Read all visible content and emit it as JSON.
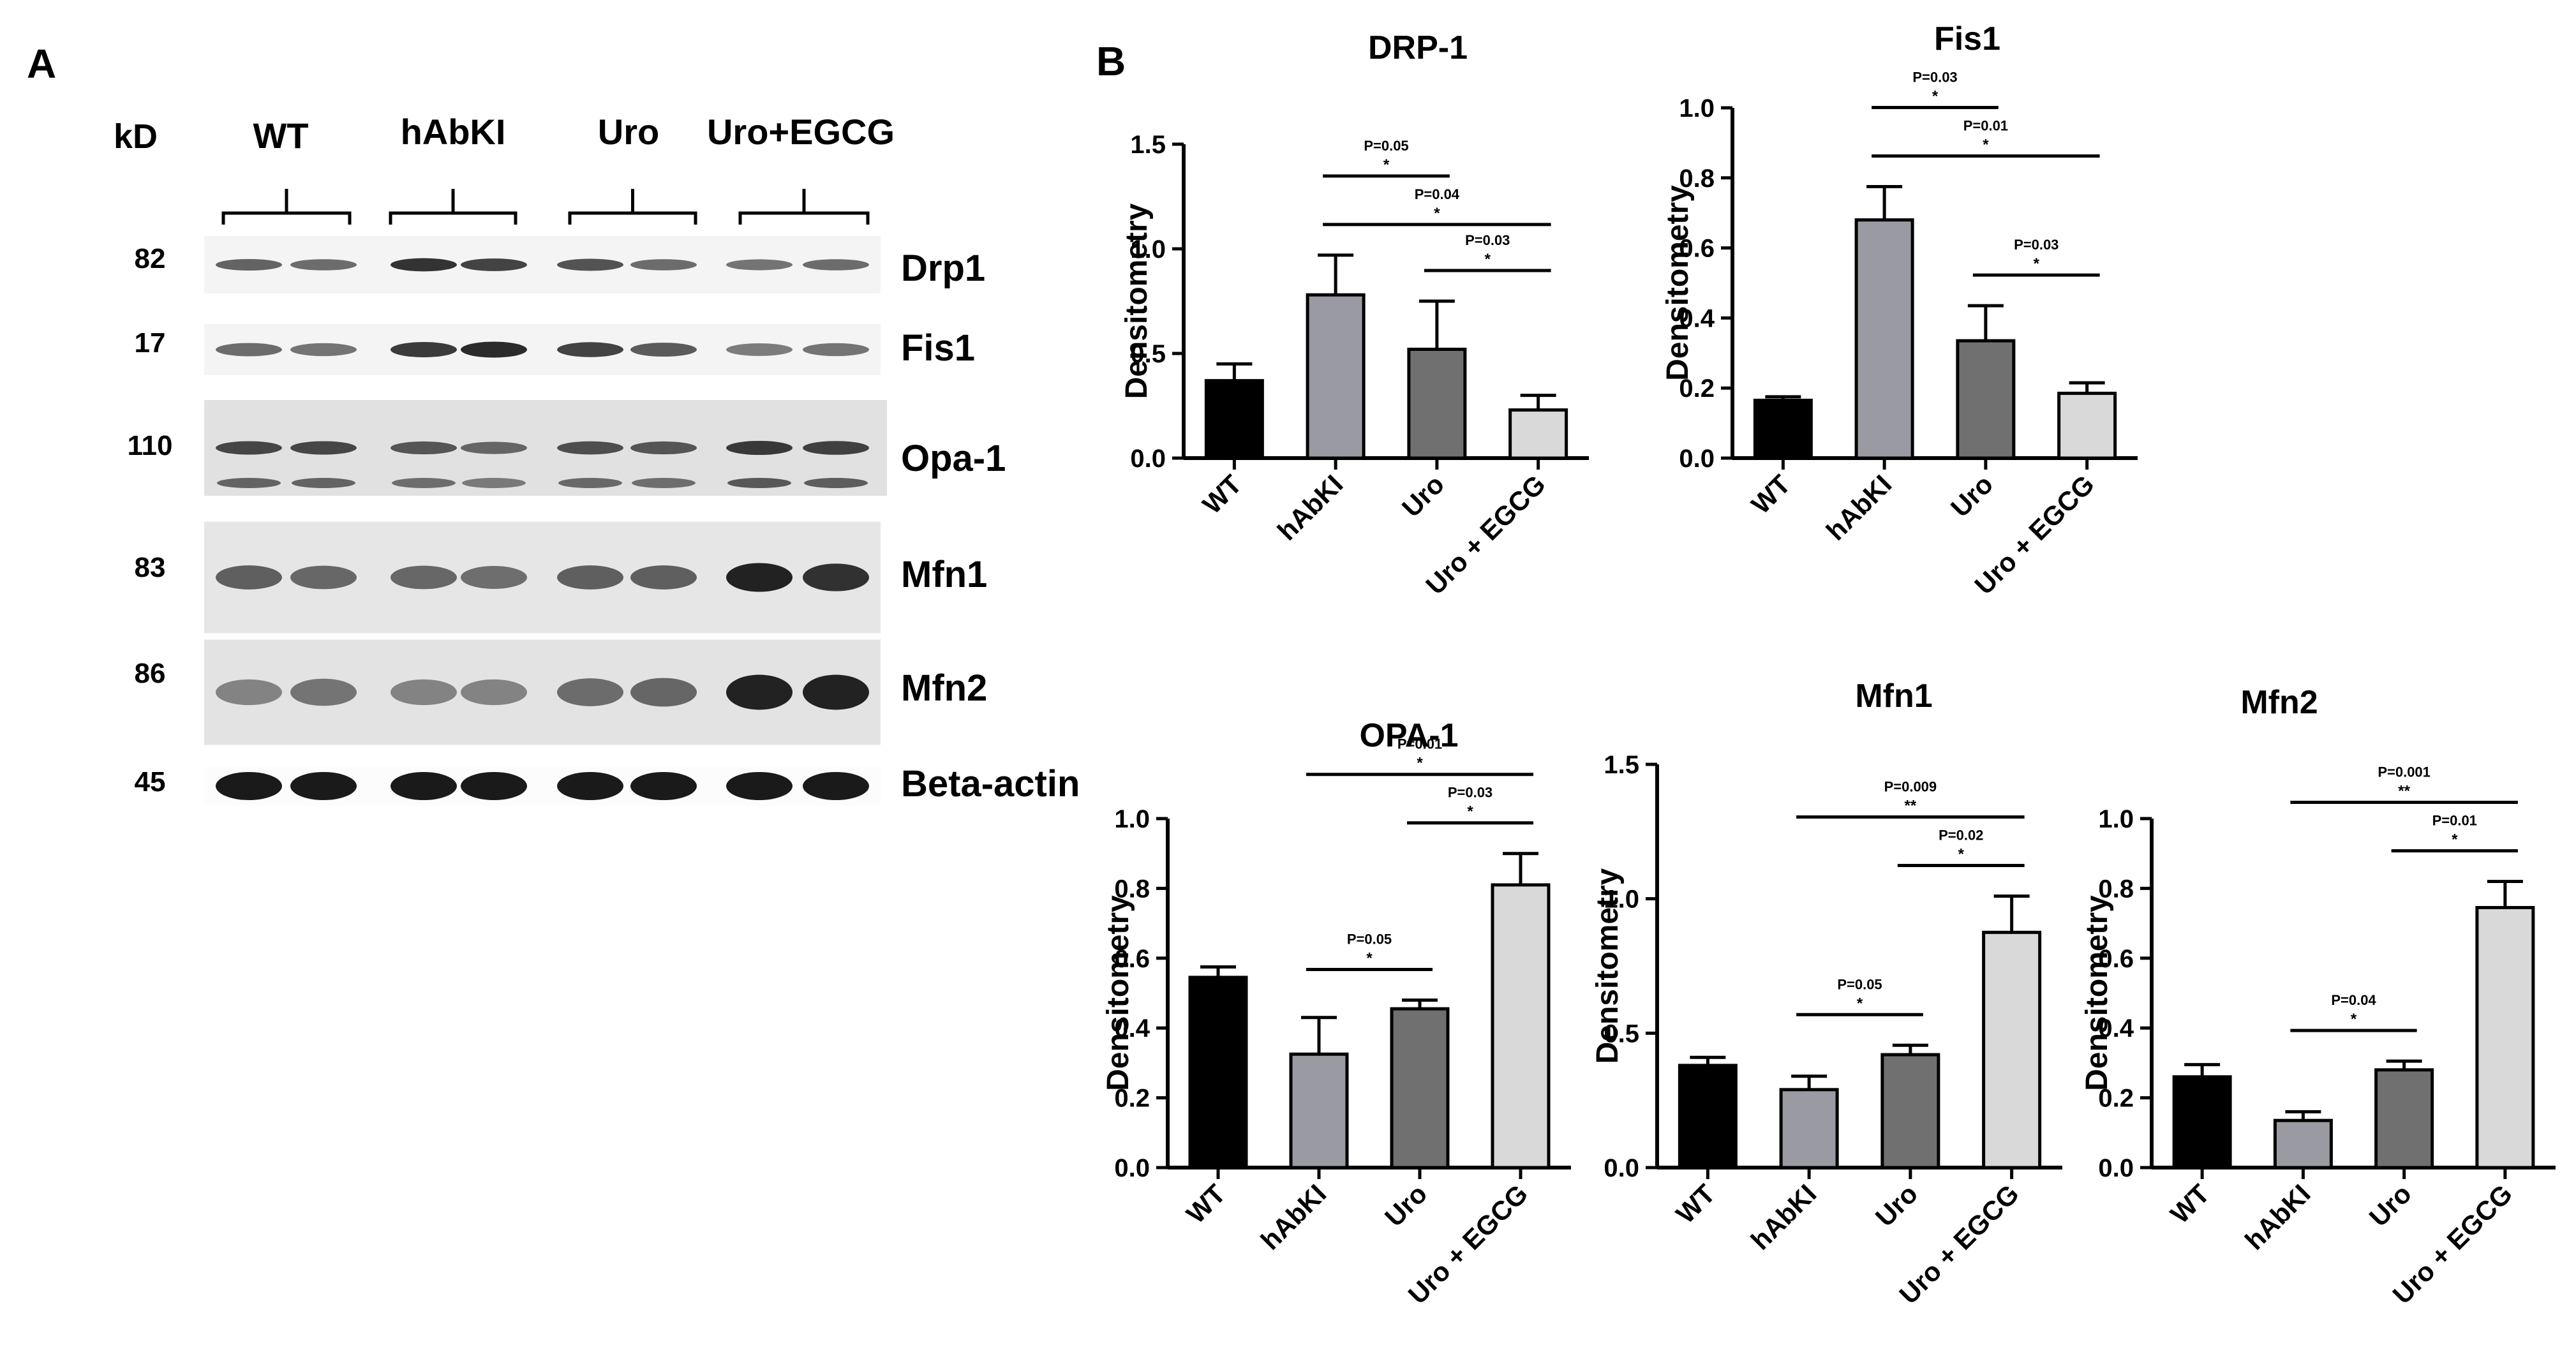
{
  "panel_a": {
    "letter": "A",
    "kd_header": "kD",
    "groups": [
      "WT",
      "hAbKI",
      "Uro",
      "Uro+EGCG"
    ],
    "bands": [
      {
        "kd": "82",
        "label": "Drp1",
        "intensity": [
          0.55,
          0.5,
          0.85,
          0.75,
          0.65,
          0.5,
          0.45,
          0.5
        ]
      },
      {
        "kd": "17",
        "label": "Fis1",
        "intensity": [
          0.5,
          0.45,
          0.8,
          0.9,
          0.75,
          0.6,
          0.4,
          0.45
        ]
      },
      {
        "kd": "110",
        "label": "Opa-1",
        "intensity": [
          0.7,
          0.7,
          0.6,
          0.5,
          0.65,
          0.6,
          0.8,
          0.75
        ]
      },
      {
        "kd": "83",
        "label": "Mfn1",
        "intensity": [
          0.55,
          0.5,
          0.5,
          0.45,
          0.55,
          0.55,
          0.95,
          0.85
        ]
      },
      {
        "kd": "86",
        "label": "Mfn2",
        "intensity": [
          0.3,
          0.4,
          0.3,
          0.3,
          0.45,
          0.5,
          0.95,
          0.95
        ]
      },
      {
        "kd": "45",
        "label": "Beta-actin",
        "intensity": [
          1,
          1,
          1,
          1,
          1,
          1,
          1,
          1
        ]
      }
    ]
  },
  "panel_b": {
    "letter": "B"
  },
  "colors": {
    "WT": "#000000",
    "hAbKI": "#9a9aa2",
    "Uro": "#707070",
    "Uro + EGCG": "#d9d9d9",
    "band": "#222222",
    "band_bg": "#dcdcdc"
  },
  "chart_data": [
    {
      "type": "bar",
      "title": "DRP-1",
      "ylabel": "Densitometry",
      "categories": [
        "WT",
        "hAbKI",
        "Uro",
        "Uro + EGCG"
      ],
      "values": [
        0.37,
        0.78,
        0.52,
        0.23
      ],
      "errors": [
        0.08,
        0.19,
        0.23,
        0.07
      ],
      "ylim": [
        0,
        1.5
      ],
      "yticks": [
        "0.0",
        "0.5",
        "1.0",
        "1.5"
      ],
      "comparisons": [
        {
          "from": 1,
          "to": 3,
          "p": "P=0.04",
          "sig": "*"
        },
        {
          "from": 1,
          "to": 2,
          "p": "P=0.05",
          "sig": "*"
        },
        {
          "from": 2,
          "to": 3,
          "p": "P=0.03",
          "sig": "*"
        }
      ]
    },
    {
      "type": "bar",
      "title": "Fis1",
      "ylabel": "Densitometry",
      "categories": [
        "WT",
        "hAbKI",
        "Uro",
        "Uro + EGCG"
      ],
      "values": [
        0.165,
        0.68,
        0.335,
        0.185
      ],
      "errors": [
        0.01,
        0.095,
        0.1,
        0.03
      ],
      "ylim": [
        0,
        1.0
      ],
      "yticks": [
        "0.0",
        "0.2",
        "0.4",
        "0.6",
        "0.8",
        "1.0"
      ],
      "comparisons": [
        {
          "from": 1,
          "to": 3,
          "p": "P=0.01",
          "sig": "*"
        },
        {
          "from": 1,
          "to": 2,
          "p": "P=0.03",
          "sig": "*"
        },
        {
          "from": 2,
          "to": 3,
          "p": "P=0.03",
          "sig": "*"
        }
      ]
    },
    {
      "type": "bar",
      "title": "OPA-1",
      "ylabel": "Densitometry",
      "categories": [
        "WT",
        "hAbKI",
        "Uro",
        "Uro + EGCG"
      ],
      "values": [
        0.545,
        0.325,
        0.455,
        0.81
      ],
      "errors": [
        0.03,
        0.105,
        0.025,
        0.09
      ],
      "ylim": [
        0,
        1.0
      ],
      "yticks": [
        "0.0",
        "0.2",
        "0.4",
        "0.6",
        "0.8",
        "1.0"
      ],
      "comparisons": [
        {
          "from": 2,
          "to": 3,
          "p": "P=0.03",
          "sig": "*"
        },
        {
          "from": 1,
          "to": 3,
          "p": "P=0.01",
          "sig": "*"
        },
        {
          "from": 1,
          "to": 2,
          "p": "P=0.05",
          "sig": "*"
        }
      ]
    },
    {
      "type": "bar",
      "title": "Mfn1",
      "ylabel": "Densitometry",
      "categories": [
        "WT",
        "hAbKI",
        "Uro",
        "Uro + EGCG"
      ],
      "values": [
        0.38,
        0.29,
        0.42,
        0.875
      ],
      "errors": [
        0.03,
        0.05,
        0.035,
        0.135
      ],
      "ylim": [
        0,
        1.5
      ],
      "yticks": [
        "0.0",
        "0.5",
        "1.0",
        "1.5"
      ],
      "comparisons": [
        {
          "from": 2,
          "to": 3,
          "p": "P=0.02",
          "sig": "*"
        },
        {
          "from": 1,
          "to": 3,
          "p": "P=0.009",
          "sig": "**"
        },
        {
          "from": 1,
          "to": 2,
          "p": "P=0.05",
          "sig": "*"
        }
      ]
    },
    {
      "type": "bar",
      "title": "Mfn2",
      "ylabel": "Densitometry",
      "categories": [
        "WT",
        "hAbKI",
        "Uro",
        "Uro + EGCG"
      ],
      "values": [
        0.26,
        0.135,
        0.28,
        0.745
      ],
      "errors": [
        0.035,
        0.025,
        0.025,
        0.075
      ],
      "ylim": [
        0,
        1.0
      ],
      "yticks": [
        "0.0",
        "0.2",
        "0.4",
        "0.6",
        "0.8",
        "1.0"
      ],
      "comparisons": [
        {
          "from": 2,
          "to": 3,
          "p": "P=0.01",
          "sig": "*"
        },
        {
          "from": 1,
          "to": 3,
          "p": "P=0.001",
          "sig": "**"
        },
        {
          "from": 1,
          "to": 2,
          "p": "P=0.04",
          "sig": "*"
        }
      ]
    }
  ]
}
